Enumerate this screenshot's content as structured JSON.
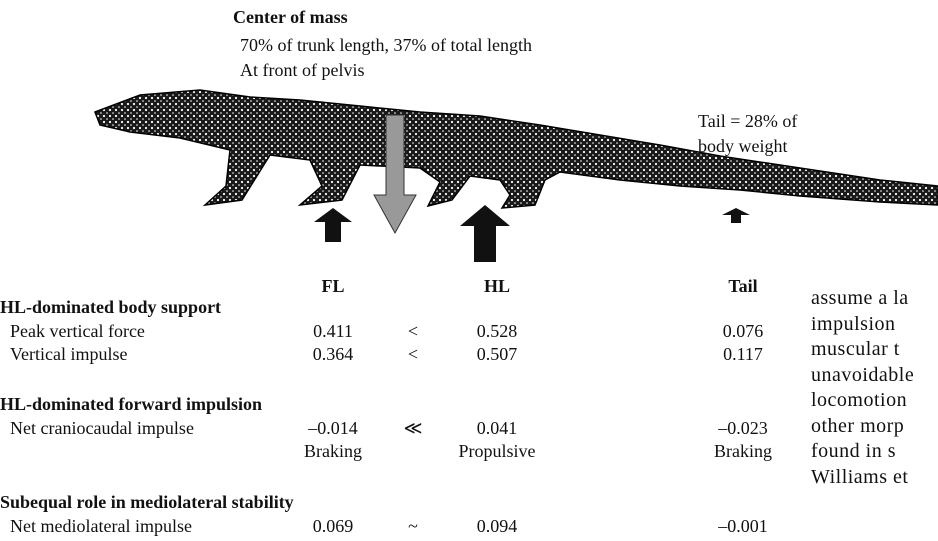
{
  "figure": {
    "com_title": "Center of mass",
    "com_lines": [
      "70% of trunk length, 37% of total length",
      "At front of pelvis"
    ],
    "tail_note": [
      "Tail = 28% of",
      "body weight"
    ]
  },
  "table": {
    "columns": [
      "FL",
      "HL",
      "Tail"
    ],
    "sections": [
      {
        "heading": "HL-dominated body support",
        "rows": [
          {
            "label": "Peak vertical force",
            "fl": "0.411",
            "cmp": "<",
            "hl": "0.528",
            "tail": "0.076"
          },
          {
            "label": "Vertical impulse",
            "fl": "0.364",
            "cmp": "<",
            "hl": "0.507",
            "tail": "0.117"
          }
        ]
      },
      {
        "heading": "HL-dominated forward impulsion",
        "rows": [
          {
            "label": "Net craniocaudal impulse",
            "fl": "–0.014",
            "cmp": "≪",
            "hl": "0.041",
            "tail": "–0.023"
          },
          {
            "fl": "Braking",
            "hl": "Propulsive",
            "tail": "Braking"
          }
        ]
      },
      {
        "heading": "Subequal role in mediolateral stability",
        "rows": [
          {
            "label": "Net mediolateral impulse",
            "fl": "0.069",
            "cmp": "~",
            "hl": "0.094",
            "tail": "–0.001"
          }
        ]
      }
    ]
  },
  "body_text": [
    "assume a la",
    "impulsion",
    "muscular t",
    "unavoidable",
    "locomotion",
    "other morp",
    "found in s",
    "Williams et"
  ]
}
